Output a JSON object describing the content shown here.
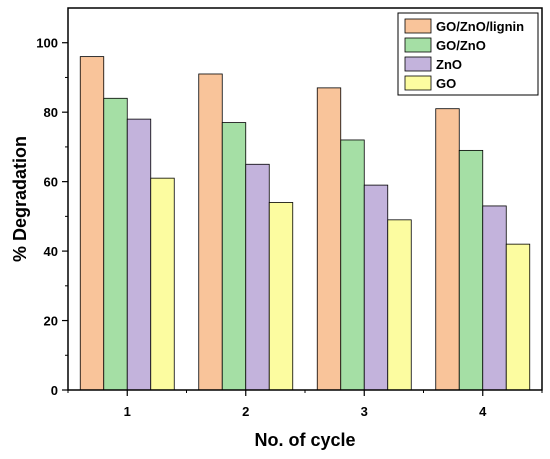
{
  "chart_data": {
    "type": "bar",
    "categories": [
      "1",
      "2",
      "3",
      "4"
    ],
    "series": [
      {
        "name": "GO/ZnO/lignin",
        "values": [
          96,
          91,
          87,
          81
        ],
        "color": "#F9C49A"
      },
      {
        "name": "GO/ZnO",
        "values": [
          84,
          77,
          72,
          69
        ],
        "color": "#A5DFA5"
      },
      {
        "name": "ZnO",
        "values": [
          78,
          65,
          59,
          53
        ],
        "color": "#C3B3DC"
      },
      {
        "name": "GO",
        "values": [
          61,
          54,
          49,
          42
        ],
        "color": "#FCFCA0"
      }
    ],
    "xlabel": "No. of cycle",
    "ylabel": "% Degradation",
    "ylim": [
      0,
      110
    ],
    "yticks": [
      0,
      20,
      40,
      60,
      80,
      100
    ],
    "grid": false,
    "legend_position": "top-right"
  }
}
